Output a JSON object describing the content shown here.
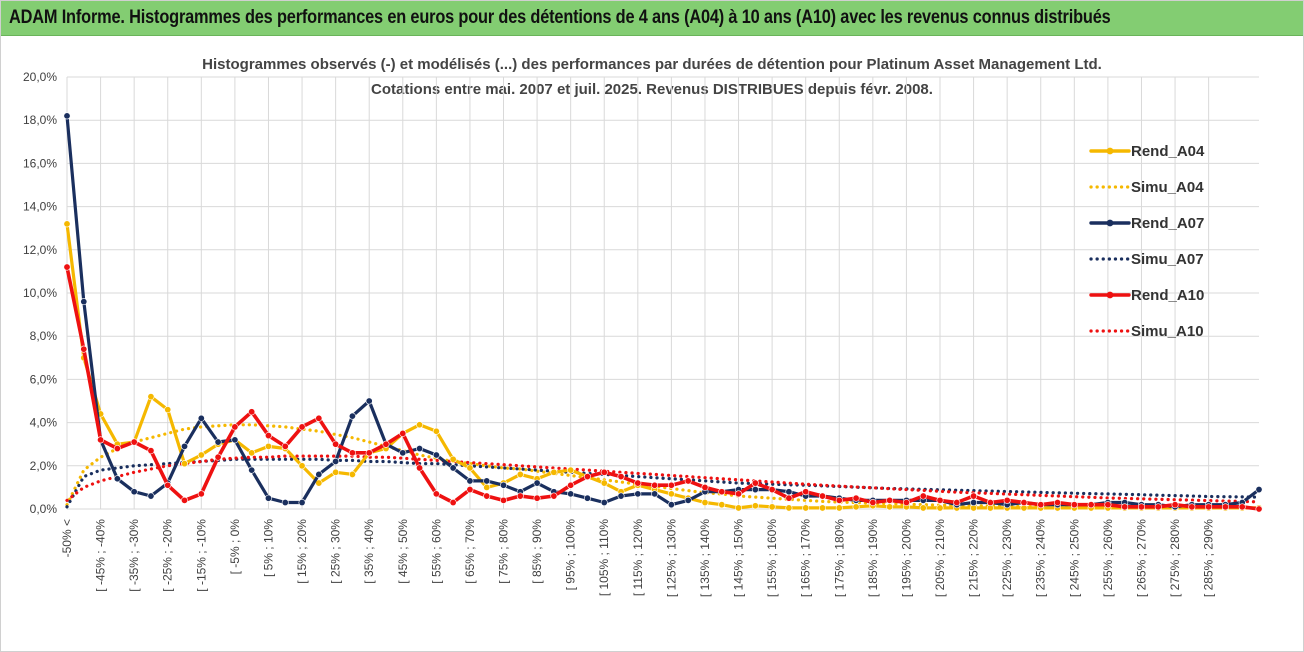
{
  "header": {
    "title": "ADAM Informe. Histogrammes des performances en euros pour des détentions de 4 ans (A04) à 10 ans (A10) avec les revenus connus distribués"
  },
  "colors": {
    "header_bg": "#83cd72",
    "A04": "#f5b800",
    "A07": "#1a2f5e",
    "A10": "#ee1111",
    "grid": "#d9d9d9"
  },
  "chart_data": {
    "type": "line",
    "title_line1": "Histogrammes observés (-) et modélisés (...) des performances par durées de détention pour Platinum Asset Management Ltd.",
    "title_line2": "Cotations entre mai. 2007 et juil. 2025. Revenus DISTRIBUES depuis févr. 2008.",
    "xlabel": "",
    "ylabel": "",
    "ylim": [
      0,
      20
    ],
    "y_ticks": [
      "0,0%",
      "2,0%",
      "4,0%",
      "6,0%",
      "8,0%",
      "10,0%",
      "12,0%",
      "14,0%",
      "16,0%",
      "18,0%",
      "20,0%"
    ],
    "x_ticks": [
      "-50% <",
      "[ -45% ; -40%",
      "[ -35% ; -30%",
      "[ -25% ; -20%",
      "[ -15% ; -10%",
      "[ -5% ; 0%",
      "[ 5% ; 10%",
      "[ 15% ; 20%",
      "[ 25% ; 30%",
      "[ 35% ; 40%",
      "[ 45% ; 50%",
      "[ 55% ; 60%",
      "[ 65% ; 70%",
      "[ 75% ; 80%",
      "[ 85% ; 90%",
      "[ 95% ; 100%",
      "[ 105% ; 110%",
      "[ 115% ; 120%",
      "[ 125% ; 130%",
      "[ 135% ; 140%",
      "[ 145% ; 150%",
      "[ 155% ; 160%",
      "[ 165% ; 170%",
      "[ 175% ; 180%",
      "[ 185% ; 190%",
      "[ 195% ; 200%",
      "[ 205% ; 210%",
      "[ 215% ; 220%",
      "[ 225% ; 230%",
      "[ 235% ; 240%",
      "[ 245% ; 250%",
      "[ 255% ; 260%",
      "[ 265% ; 270%",
      "[ 275% ; 280%",
      "[ 285% ; 290%"
    ],
    "grid": true,
    "legend_position": "right",
    "series": [
      {
        "name": "Rend_A04",
        "style": "solid",
        "color": "#f5b800",
        "values": [
          13.2,
          7.0,
          4.4,
          3.0,
          3.1,
          5.2,
          4.6,
          2.1,
          2.5,
          3.0,
          3.2,
          2.6,
          2.9,
          2.8,
          2.0,
          1.2,
          1.7,
          1.6,
          2.6,
          2.8,
          3.5,
          3.9,
          3.6,
          2.3,
          1.9,
          1.0,
          1.2,
          1.6,
          1.4,
          1.7,
          1.8,
          1.5,
          1.2,
          0.8,
          1.1,
          0.9,
          0.7,
          0.5,
          0.3,
          0.2,
          0.05,
          0.15,
          0.1,
          0.05,
          0.05,
          0.05,
          0.05,
          0.1,
          0.15,
          0.1,
          0.1,
          0.05,
          0.05,
          0.05,
          0.05,
          0.05,
          0.05,
          0.05,
          0.05,
          0.05,
          0.05,
          0.05,
          0.05,
          0.05,
          0.05,
          0.05,
          0.05,
          0.05,
          0.05,
          0.05,
          0.05,
          0.05
        ]
      },
      {
        "name": "Simu_A04",
        "style": "dotted",
        "color": "#f5b800",
        "values": [
          0.2,
          1.8,
          2.4,
          2.8,
          3.1,
          3.3,
          3.5,
          3.7,
          3.8,
          3.85,
          3.9,
          3.9,
          3.85,
          3.8,
          3.7,
          3.6,
          3.45,
          3.3,
          3.1,
          2.9,
          2.7,
          2.5,
          2.35,
          2.2,
          2.1,
          2.0,
          1.9,
          1.85,
          1.75,
          1.65,
          1.55,
          1.45,
          1.35,
          1.25,
          1.15,
          1.05,
          0.95,
          0.85,
          0.75,
          0.7,
          0.6,
          0.55,
          0.5,
          0.45,
          0.4,
          0.35,
          0.32,
          0.3,
          0.27,
          0.25,
          0.22,
          0.2,
          0.18,
          0.16,
          0.15,
          0.14,
          0.13,
          0.12,
          0.11,
          0.1,
          0.09,
          0.08,
          0.07,
          0.07,
          0.06,
          0.06,
          0.05,
          0.05,
          0.05,
          0.05,
          0.05,
          0.05
        ]
      },
      {
        "name": "Rend_A07",
        "style": "solid",
        "color": "#1a2f5e",
        "values": [
          18.2,
          9.6,
          3.2,
          1.4,
          0.8,
          0.6,
          1.2,
          2.9,
          4.2,
          3.1,
          3.2,
          1.8,
          0.5,
          0.3,
          0.3,
          1.6,
          2.2,
          4.3,
          5.0,
          3.0,
          2.6,
          2.8,
          2.5,
          1.9,
          1.3,
          1.3,
          1.1,
          0.8,
          1.2,
          0.8,
          0.7,
          0.5,
          0.3,
          0.6,
          0.7,
          0.7,
          0.2,
          0.4,
          0.8,
          0.8,
          0.9,
          0.9,
          0.9,
          0.8,
          0.6,
          0.6,
          0.5,
          0.4,
          0.4,
          0.4,
          0.4,
          0.4,
          0.4,
          0.2,
          0.3,
          0.3,
          0.2,
          0.3,
          0.2,
          0.2,
          0.2,
          0.2,
          0.3,
          0.3,
          0.2,
          0.2,
          0.1,
          0.2,
          0.2,
          0.2,
          0.3,
          0.9
        ]
      },
      {
        "name": "Simu_A07",
        "style": "dotted",
        "color": "#1a2f5e",
        "values": [
          0.1,
          1.5,
          1.8,
          1.9,
          2.0,
          2.05,
          2.1,
          2.15,
          2.2,
          2.25,
          2.3,
          2.3,
          2.3,
          2.3,
          2.3,
          2.3,
          2.25,
          2.25,
          2.2,
          2.2,
          2.15,
          2.1,
          2.1,
          2.05,
          2.0,
          1.95,
          1.9,
          1.85,
          1.8,
          1.75,
          1.7,
          1.65,
          1.6,
          1.55,
          1.5,
          1.45,
          1.4,
          1.35,
          1.3,
          1.25,
          1.2,
          1.18,
          1.15,
          1.12,
          1.1,
          1.07,
          1.04,
          1.01,
          0.98,
          0.95,
          0.93,
          0.91,
          0.89,
          0.87,
          0.85,
          0.83,
          0.81,
          0.79,
          0.77,
          0.75,
          0.73,
          0.71,
          0.7,
          0.68,
          0.66,
          0.64,
          0.62,
          0.6,
          0.58,
          0.57,
          0.56,
          0.55
        ]
      },
      {
        "name": "Rend_A10",
        "style": "solid",
        "color": "#ee1111",
        "values": [
          11.2,
          7.4,
          3.2,
          2.8,
          3.1,
          2.7,
          1.1,
          0.4,
          0.7,
          2.4,
          3.8,
          4.5,
          3.4,
          2.9,
          3.8,
          4.2,
          3.0,
          2.6,
          2.6,
          3.0,
          3.5,
          1.9,
          0.7,
          0.3,
          0.9,
          0.6,
          0.4,
          0.6,
          0.5,
          0.6,
          1.1,
          1.5,
          1.7,
          1.5,
          1.2,
          1.1,
          1.1,
          1.3,
          1.0,
          0.8,
          0.7,
          1.2,
          0.9,
          0.5,
          0.8,
          0.6,
          0.4,
          0.5,
          0.3,
          0.4,
          0.3,
          0.6,
          0.4,
          0.3,
          0.6,
          0.3,
          0.4,
          0.3,
          0.2,
          0.3,
          0.2,
          0.2,
          0.2,
          0.1,
          0.1,
          0.1,
          0.2,
          0.1,
          0.1,
          0.1,
          0.1,
          0.0
        ]
      },
      {
        "name": "Simu_A10",
        "style": "dotted",
        "color": "#ee1111",
        "values": [
          0.4,
          1.0,
          1.3,
          1.5,
          1.7,
          1.85,
          2.0,
          2.1,
          2.2,
          2.3,
          2.35,
          2.4,
          2.4,
          2.45,
          2.45,
          2.45,
          2.45,
          2.45,
          2.4,
          2.4,
          2.35,
          2.3,
          2.25,
          2.2,
          2.15,
          2.1,
          2.05,
          2.0,
          1.95,
          1.9,
          1.85,
          1.8,
          1.75,
          1.7,
          1.65,
          1.6,
          1.55,
          1.5,
          1.45,
          1.4,
          1.35,
          1.3,
          1.25,
          1.2,
          1.15,
          1.1,
          1.06,
          1.02,
          0.98,
          0.94,
          0.9,
          0.86,
          0.82,
          0.78,
          0.75,
          0.72,
          0.69,
          0.66,
          0.63,
          0.6,
          0.57,
          0.54,
          0.51,
          0.49,
          0.47,
          0.45,
          0.43,
          0.41,
          0.39,
          0.37,
          0.35,
          0.33
        ]
      }
    ]
  }
}
